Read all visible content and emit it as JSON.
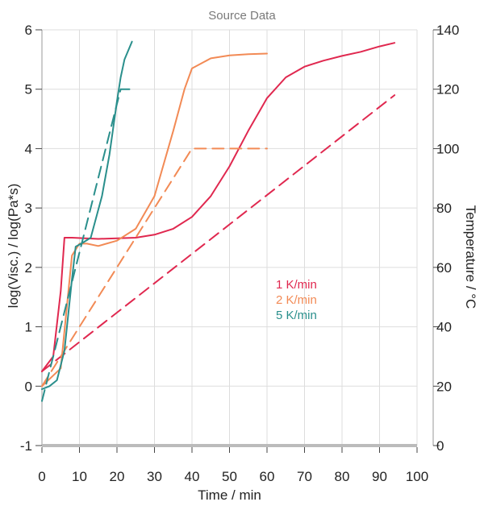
{
  "chart_data": {
    "type": "line",
    "title": "Source Data",
    "xlabel": "Time / min",
    "ylabel_left": "log(Visc.) / log(Pa*s)",
    "ylabel_right": "Temperature / °C",
    "xlim": [
      0,
      100
    ],
    "ylim_left": [
      -1,
      6
    ],
    "ylim_right": [
      0,
      140
    ],
    "x_ticks": [
      0,
      10,
      20,
      30,
      40,
      50,
      60,
      70,
      80,
      90,
      100
    ],
    "y_left_ticks": [
      -1,
      0,
      1,
      2,
      3,
      4,
      5,
      6
    ],
    "y_right_ticks": [
      0,
      20,
      40,
      60,
      80,
      100,
      120,
      140
    ],
    "grid": true,
    "legend": [
      "1 K/min",
      "2 K/min",
      "5 K/min"
    ],
    "legend_placement": "center-right",
    "colors": {
      "1 K/min": "#e0284f",
      "2 K/min": "#f28a55",
      "5 K/min": "#2a8f8c"
    },
    "series": [
      {
        "name": "1 K/min",
        "axis": "left",
        "style": "solid",
        "points": [
          [
            0,
            0.25
          ],
          [
            3,
            0.5
          ],
          [
            5,
            1.6
          ],
          [
            6,
            2.5
          ],
          [
            8,
            2.5
          ],
          [
            15,
            2.48
          ],
          [
            25,
            2.5
          ],
          [
            30,
            2.55
          ],
          [
            35,
            2.65
          ],
          [
            40,
            2.85
          ],
          [
            45,
            3.2
          ],
          [
            50,
            3.7
          ],
          [
            55,
            4.3
          ],
          [
            60,
            4.85
          ],
          [
            65,
            5.2
          ],
          [
            70,
            5.38
          ],
          [
            75,
            5.48
          ],
          [
            80,
            5.56
          ],
          [
            85,
            5.63
          ],
          [
            90,
            5.72
          ],
          [
            94,
            5.78
          ]
        ]
      },
      {
        "name": "1 K/min",
        "axis": "right",
        "style": "dashed",
        "points": [
          [
            0,
            25
          ],
          [
            94,
            118
          ]
        ]
      },
      {
        "name": "2 K/min",
        "axis": "left",
        "style": "solid",
        "points": [
          [
            0,
            0.0
          ],
          [
            5,
            0.3
          ],
          [
            8,
            2.2
          ],
          [
            10,
            2.4
          ],
          [
            12,
            2.4
          ],
          [
            15,
            2.36
          ],
          [
            20,
            2.45
          ],
          [
            25,
            2.65
          ],
          [
            30,
            3.2
          ],
          [
            35,
            4.3
          ],
          [
            38,
            5.0
          ],
          [
            40,
            5.35
          ],
          [
            45,
            5.52
          ],
          [
            50,
            5.57
          ],
          [
            55,
            5.59
          ],
          [
            60,
            5.6
          ]
        ]
      },
      {
        "name": "2 K/min",
        "axis": "right",
        "style": "dashed",
        "points": [
          [
            0,
            20
          ],
          [
            40,
            100
          ],
          [
            60,
            100
          ]
        ]
      },
      {
        "name": "5 K/min",
        "axis": "left",
        "style": "solid",
        "points": [
          [
            0,
            -0.05
          ],
          [
            2,
            0.0
          ],
          [
            4,
            0.1
          ],
          [
            6,
            0.6
          ],
          [
            8,
            1.8
          ],
          [
            9,
            2.35
          ],
          [
            11,
            2.42
          ],
          [
            13,
            2.5
          ],
          [
            16,
            3.2
          ],
          [
            18,
            3.9
          ],
          [
            20,
            4.8
          ],
          [
            21,
            5.2
          ],
          [
            22,
            5.5
          ],
          [
            24,
            5.8
          ]
        ]
      },
      {
        "name": "5 K/min",
        "axis": "right",
        "style": "dashed",
        "points": [
          [
            0,
            15
          ],
          [
            21,
            120
          ],
          [
            25,
            120
          ]
        ]
      }
    ]
  }
}
